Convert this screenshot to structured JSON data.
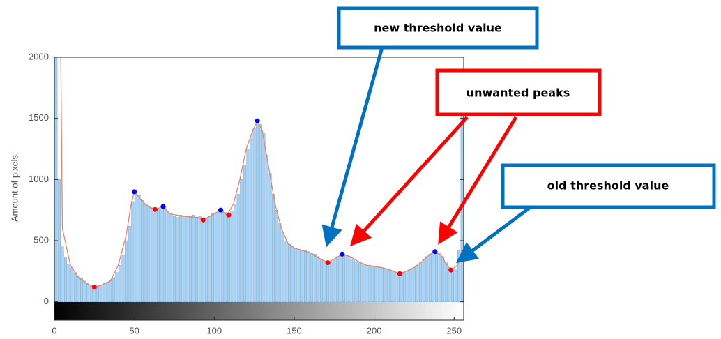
{
  "chart_data": {
    "type": "histogram",
    "ylabel": "Amount of pixels",
    "bins": [
      0,
      2,
      4,
      6,
      8,
      10,
      12,
      14,
      16,
      18,
      20,
      22,
      24,
      26,
      28,
      30,
      32,
      34,
      36,
      38,
      40,
      42,
      44,
      46,
      48,
      50,
      52,
      54,
      56,
      58,
      60,
      62,
      64,
      66,
      68,
      70,
      72,
      74,
      76,
      78,
      80,
      82,
      84,
      86,
      88,
      90,
      92,
      94,
      96,
      98,
      100,
      102,
      104,
      106,
      108,
      110,
      112,
      114,
      116,
      118,
      120,
      122,
      124,
      126,
      128,
      130,
      132,
      134,
      136,
      138,
      140,
      142,
      144,
      146,
      148,
      150,
      152,
      154,
      156,
      158,
      160,
      162,
      164,
      166,
      168,
      170,
      172,
      174,
      176,
      178,
      180,
      182,
      184,
      186,
      188,
      190,
      192,
      194,
      196,
      198,
      200,
      202,
      204,
      206,
      208,
      210,
      212,
      214,
      216,
      218,
      220,
      222,
      224,
      226,
      228,
      230,
      232,
      234,
      236,
      238,
      240,
      242,
      244,
      246,
      248,
      250,
      252,
      254,
      256
    ],
    "counts": [
      2000,
      1000,
      450,
      360,
      310,
      280,
      240,
      210,
      190,
      170,
      150,
      140,
      125,
      130,
      135,
      150,
      160,
      175,
      200,
      240,
      300,
      380,
      500,
      620,
      820,
      890,
      870,
      830,
      800,
      780,
      770,
      750,
      760,
      775,
      780,
      740,
      720,
      700,
      690,
      710,
      700,
      690,
      700,
      710,
      690,
      700,
      670,
      680,
      700,
      720,
      730,
      745,
      750,
      730,
      710,
      740,
      800,
      880,
      1000,
      1120,
      1250,
      1350,
      1420,
      1480,
      1450,
      1380,
      1200,
      1050,
      880,
      750,
      640,
      570,
      500,
      470,
      450,
      440,
      430,
      420,
      420,
      410,
      400,
      390,
      370,
      350,
      330,
      320,
      330,
      350,
      370,
      385,
      390,
      380,
      365,
      350,
      330,
      320,
      310,
      300,
      300,
      295,
      290,
      285,
      280,
      270,
      265,
      255,
      245,
      235,
      230,
      240,
      250,
      265,
      280,
      300,
      320,
      345,
      370,
      390,
      405,
      410,
      395,
      370,
      320,
      280,
      260,
      270,
      420,
      1800
    ],
    "color": "#a9d1f0",
    "edgecolor": "#5b9bd5",
    "curve": {
      "color": "#e8836a",
      "x": [
        4,
        5,
        10,
        15,
        20,
        25,
        30,
        35,
        40,
        45,
        48,
        50,
        55,
        60,
        63,
        68,
        72,
        80,
        90,
        93,
        100,
        104,
        108,
        112,
        116,
        120,
        124,
        127,
        130,
        134,
        138,
        142,
        146,
        150,
        155,
        160,
        165,
        171,
        175,
        180,
        185,
        190,
        195,
        200,
        205,
        210,
        216,
        220,
        225,
        230,
        235,
        238,
        242,
        245,
        248,
        252,
        254,
        255
      ],
      "values": [
        2000,
        600,
        300,
        200,
        150,
        120,
        140,
        170,
        300,
        550,
        800,
        900,
        820,
        770,
        755,
        780,
        720,
        700,
        690,
        670,
        720,
        750,
        710,
        800,
        1000,
        1250,
        1400,
        1480,
        1400,
        1100,
        800,
        600,
        480,
        440,
        420,
        400,
        360,
        320,
        350,
        390,
        370,
        330,
        300,
        290,
        280,
        260,
        230,
        250,
        280,
        330,
        390,
        410,
        380,
        310,
        260,
        300,
        380,
        440
      ]
    },
    "maxima": {
      "color": "#0000ff",
      "x": [
        50,
        68,
        104,
        127,
        180,
        238
      ],
      "values": [
        900,
        780,
        750,
        1480,
        390,
        410
      ]
    },
    "minima": {
      "color": "#ff0000",
      "x": [
        25,
        63,
        93,
        109,
        171,
        216,
        248
      ],
      "values": [
        120,
        755,
        670,
        710,
        320,
        230,
        260
      ]
    },
    "xlim": [
      0,
      256
    ],
    "ylim": [
      -150,
      2000
    ],
    "xticks": [
      0,
      50,
      100,
      150,
      200,
      250
    ],
    "yticks": [
      0,
      500,
      1000,
      1500,
      2000
    ],
    "annotations": [
      {
        "text": "new threshold value",
        "color": "#0070c0"
      },
      {
        "text": "unwanted peaks",
        "color": "#ff0000"
      },
      {
        "text": "old threshold value",
        "color": "#0070c0"
      }
    ]
  }
}
